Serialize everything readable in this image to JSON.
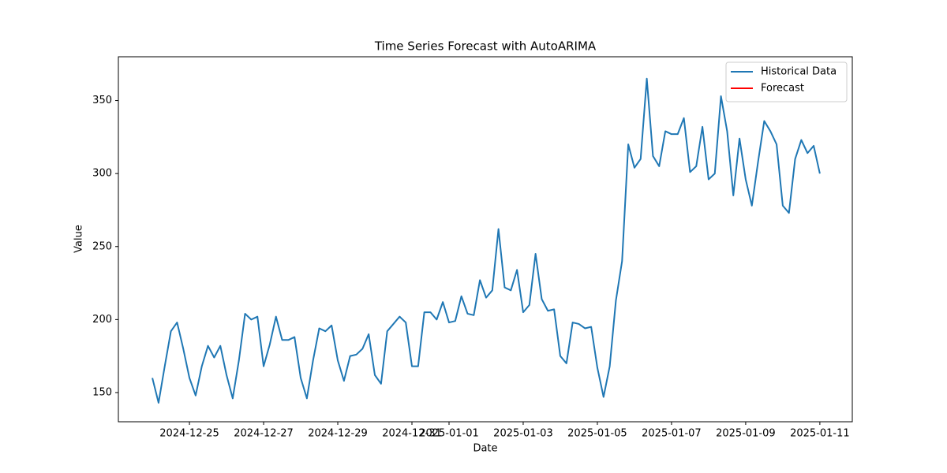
{
  "chart_data": {
    "type": "line",
    "title": "Time Series Forecast with AutoARIMA",
    "x_label": "Date",
    "y_label": "Value",
    "xlim": [
      "2024-12-23 02:00",
      "2025-01-11 21:00"
    ],
    "xticks": [
      "2024-12-25",
      "2024-12-27",
      "2024-12-29",
      "2024-12-31",
      "2025-01-01",
      "2025-01-03",
      "2025-01-05",
      "2025-01-07",
      "2025-01-09",
      "2025-01-11"
    ],
    "ylim": [
      130,
      380
    ],
    "yticks": [
      150,
      200,
      250,
      300,
      350
    ],
    "grid": false,
    "legend": "upper right",
    "series": [
      {
        "name": "Historical Data",
        "color": "#1f77b4",
        "x": [
          "2024-12-24 00:00",
          "2024-12-24 04:00",
          "2024-12-24 08:00",
          "2024-12-24 12:00",
          "2024-12-24 16:00",
          "2024-12-24 20:00",
          "2024-12-25 00:00",
          "2024-12-25 04:00",
          "2024-12-25 08:00",
          "2024-12-25 12:00",
          "2024-12-25 16:00",
          "2024-12-25 20:00",
          "2024-12-26 00:00",
          "2024-12-26 04:00",
          "2024-12-26 08:00",
          "2024-12-26 12:00",
          "2024-12-26 16:00",
          "2024-12-26 20:00",
          "2024-12-27 00:00",
          "2024-12-27 04:00",
          "2024-12-27 08:00",
          "2024-12-27 12:00",
          "2024-12-27 16:00",
          "2024-12-27 20:00",
          "2024-12-28 00:00",
          "2024-12-28 04:00",
          "2024-12-28 08:00",
          "2024-12-28 12:00",
          "2024-12-28 16:00",
          "2024-12-28 20:00",
          "2024-12-29 00:00",
          "2024-12-29 04:00",
          "2024-12-29 08:00",
          "2024-12-29 12:00",
          "2024-12-29 16:00",
          "2024-12-29 20:00",
          "2024-12-30 00:00",
          "2024-12-30 04:00",
          "2024-12-30 08:00",
          "2024-12-30 12:00",
          "2024-12-30 16:00",
          "2024-12-30 20:00",
          "2024-12-31 00:00",
          "2024-12-31 04:00",
          "2024-12-31 08:00",
          "2024-12-31 12:00",
          "2024-12-31 16:00",
          "2024-12-31 20:00",
          "2025-01-01 00:00",
          "2025-01-01 04:00",
          "2025-01-01 08:00",
          "2025-01-01 12:00",
          "2025-01-01 16:00",
          "2025-01-01 20:00",
          "2025-01-02 00:00",
          "2025-01-02 04:00",
          "2025-01-02 08:00",
          "2025-01-02 12:00",
          "2025-01-02 16:00",
          "2025-01-02 20:00",
          "2025-01-03 00:00",
          "2025-01-03 04:00",
          "2025-01-03 08:00",
          "2025-01-03 12:00",
          "2025-01-03 16:00",
          "2025-01-03 20:00",
          "2025-01-04 00:00",
          "2025-01-04 04:00",
          "2025-01-04 08:00",
          "2025-01-04 12:00",
          "2025-01-04 16:00",
          "2025-01-04 20:00",
          "2025-01-05 00:00",
          "2025-01-05 04:00",
          "2025-01-05 08:00",
          "2025-01-05 12:00",
          "2025-01-05 16:00",
          "2025-01-05 20:00",
          "2025-01-06 00:00",
          "2025-01-06 04:00",
          "2025-01-06 08:00",
          "2025-01-06 12:00",
          "2025-01-06 16:00",
          "2025-01-06 20:00",
          "2025-01-07 00:00",
          "2025-01-07 04:00",
          "2025-01-07 08:00",
          "2025-01-07 12:00",
          "2025-01-07 16:00",
          "2025-01-07 20:00",
          "2025-01-08 00:00",
          "2025-01-08 04:00",
          "2025-01-08 08:00",
          "2025-01-08 12:00",
          "2025-01-08 16:00",
          "2025-01-08 20:00",
          "2025-01-09 00:00",
          "2025-01-09 04:00",
          "2025-01-09 08:00",
          "2025-01-09 12:00",
          "2025-01-09 16:00",
          "2025-01-09 20:00",
          "2025-01-10 00:00",
          "2025-01-10 04:00",
          "2025-01-10 08:00",
          "2025-01-10 12:00",
          "2025-01-10 16:00",
          "2025-01-10 20:00",
          "2025-01-11 00:00"
        ],
        "values": [
          160,
          143,
          168,
          192,
          198,
          180,
          160,
          148,
          168,
          182,
          174,
          182,
          162,
          146,
          172,
          204,
          200,
          202,
          168,
          183,
          202,
          186,
          186,
          188,
          160,
          146,
          172,
          194,
          192,
          196,
          172,
          158,
          175,
          176,
          180,
          190,
          162,
          156,
          192,
          197,
          202,
          198,
          168,
          168,
          205,
          205,
          200,
          212,
          198,
          199,
          216,
          204,
          203,
          227,
          215,
          220,
          262,
          222,
          220,
          234,
          205,
          210,
          245,
          214,
          206,
          207,
          175,
          170,
          198,
          197,
          194,
          195,
          167,
          147,
          168,
          213,
          240,
          320,
          304,
          310,
          365,
          312,
          305,
          329,
          327,
          327,
          338,
          301,
          305,
          332,
          296,
          300,
          353,
          329,
          285,
          324,
          296,
          278,
          308,
          336,
          329,
          320,
          278,
          273,
          310,
          323,
          314,
          319,
          300
        ]
      },
      {
        "name": "Forecast",
        "color": "#ff0000",
        "x": [],
        "values": []
      }
    ]
  }
}
